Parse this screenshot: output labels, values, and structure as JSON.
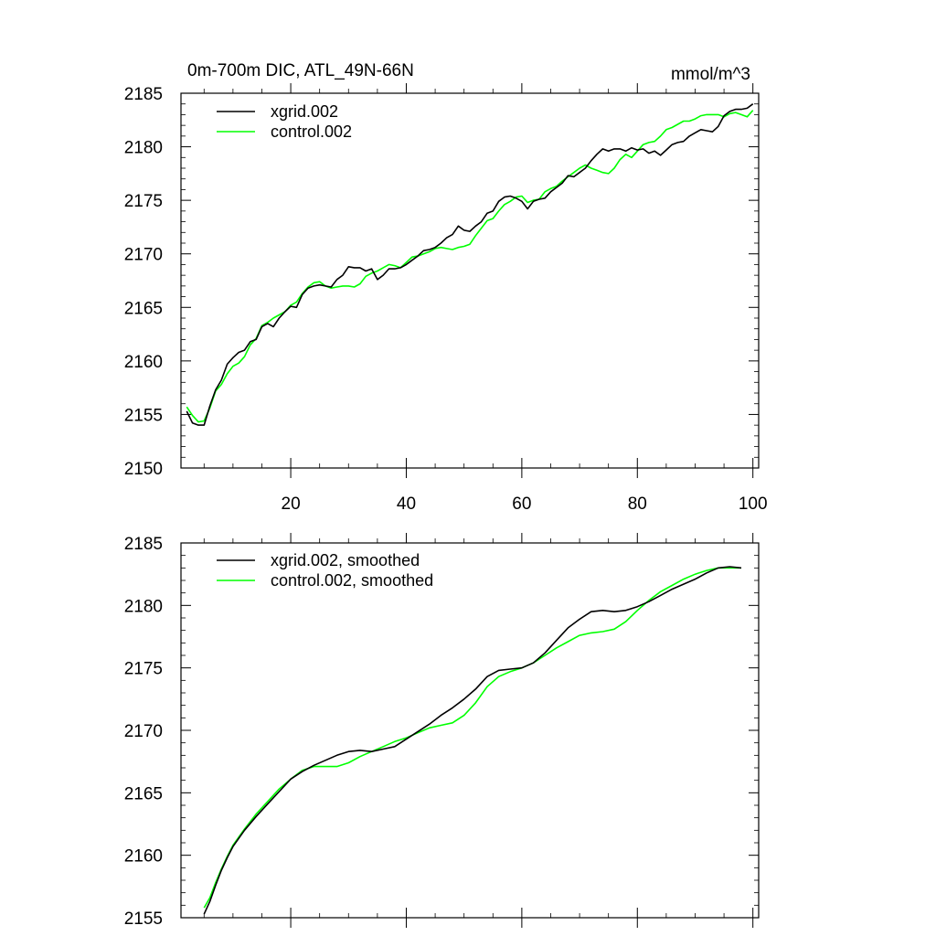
{
  "chart_data": [
    {
      "type": "line",
      "title": "0m-700m DIC, ATL_49N-66N",
      "units": "mmol/m^3",
      "xlim": [
        1,
        101
      ],
      "ylim": [
        2150,
        2185
      ],
      "xticks": [
        20,
        40,
        60,
        80,
        100
      ],
      "xtick_labels": [
        "20",
        "40",
        "60",
        "80",
        "100"
      ],
      "yticks": [
        2150,
        2155,
        2160,
        2165,
        2170,
        2175,
        2180,
        2185
      ],
      "ytick_labels": [
        "2150",
        "2155",
        "2160",
        "2165",
        "2170",
        "2175",
        "2180",
        "2185"
      ],
      "legend": "top-left",
      "series": [
        {
          "name": "xgrid.002",
          "color": "#000000",
          "x": [
            2,
            3,
            4,
            5,
            6,
            7,
            8,
            9,
            10,
            11,
            12,
            13,
            14,
            15,
            16,
            17,
            18,
            19,
            20,
            21,
            22,
            23,
            24,
            25,
            26,
            27,
            28,
            29,
            30,
            31,
            32,
            33,
            34,
            35,
            36,
            37,
            38,
            39,
            40,
            41,
            42,
            43,
            44,
            45,
            46,
            47,
            48,
            49,
            50,
            51,
            52,
            53,
            54,
            55,
            56,
            57,
            58,
            59,
            60,
            61,
            62,
            63,
            64,
            65,
            66,
            67,
            68,
            69,
            70,
            71,
            72,
            73,
            74,
            75,
            76,
            77,
            78,
            79,
            80,
            81,
            82,
            83,
            84,
            85,
            86,
            87,
            88,
            89,
            90,
            91,
            92,
            93,
            94,
            95,
            96,
            97,
            98,
            99,
            100
          ],
          "y": [
            2155.3,
            2154.2,
            2154.0,
            2154.0,
            2155.8,
            2157.3,
            2158.2,
            2159.7,
            2160.3,
            2160.8,
            2161.0,
            2161.8,
            2162.0,
            2163.2,
            2163.5,
            2163.2,
            2164.0,
            2164.6,
            2165.1,
            2165.0,
            2166.2,
            2166.8,
            2167.0,
            2167.1,
            2167.0,
            2166.9,
            2167.6,
            2168.0,
            2168.8,
            2168.7,
            2168.7,
            2168.4,
            2168.6,
            2167.6,
            2168.0,
            2168.6,
            2168.6,
            2168.7,
            2169.0,
            2169.4,
            2169.8,
            2170.3,
            2170.4,
            2170.6,
            2171.0,
            2171.5,
            2171.8,
            2172.6,
            2172.2,
            2172.1,
            2172.6,
            2173.0,
            2173.8,
            2174.0,
            2174.9,
            2175.3,
            2175.4,
            2175.2,
            2174.9,
            2174.2,
            2174.9,
            2175.1,
            2175.2,
            2175.8,
            2176.2,
            2176.6,
            2177.3,
            2177.2,
            2177.6,
            2178.0,
            2178.7,
            2179.3,
            2179.8,
            2179.6,
            2179.8,
            2179.8,
            2179.6,
            2179.9,
            2179.7,
            2179.8,
            2179.4,
            2179.6,
            2179.2,
            2179.7,
            2180.2,
            2180.4,
            2180.5,
            2181.0,
            2181.3,
            2181.6,
            2181.5,
            2181.4,
            2181.9,
            2182.9,
            2183.3,
            2183.5,
            2183.5,
            2183.6,
            2184.0
          ]
        },
        {
          "name": "control.002",
          "color": "#00ff00",
          "x": [
            2,
            3,
            4,
            5,
            6,
            7,
            8,
            9,
            10,
            11,
            12,
            13,
            14,
            15,
            16,
            17,
            18,
            19,
            20,
            21,
            22,
            23,
            24,
            25,
            26,
            27,
            28,
            29,
            30,
            31,
            32,
            33,
            34,
            35,
            36,
            37,
            38,
            39,
            40,
            41,
            42,
            43,
            44,
            45,
            46,
            47,
            48,
            49,
            50,
            51,
            52,
            53,
            54,
            55,
            56,
            57,
            58,
            59,
            60,
            61,
            62,
            63,
            64,
            65,
            66,
            67,
            68,
            69,
            70,
            71,
            72,
            73,
            74,
            75,
            76,
            77,
            78,
            79,
            80,
            81,
            82,
            83,
            84,
            85,
            86,
            87,
            88,
            89,
            90,
            91,
            92,
            93,
            94,
            95,
            96,
            97,
            98,
            99,
            100
          ],
          "y": [
            2155.7,
            2154.9,
            2154.3,
            2154.4,
            2155.6,
            2157.2,
            2157.8,
            2158.8,
            2159.5,
            2159.8,
            2160.4,
            2161.5,
            2162.1,
            2163.3,
            2163.6,
            2164.0,
            2164.3,
            2164.6,
            2165.2,
            2165.5,
            2166.3,
            2166.9,
            2167.3,
            2167.4,
            2167.0,
            2166.8,
            2166.9,
            2167.0,
            2167.0,
            2166.9,
            2167.2,
            2167.9,
            2168.2,
            2168.4,
            2168.7,
            2169.0,
            2168.9,
            2168.7,
            2169.2,
            2169.7,
            2169.8,
            2170.0,
            2170.2,
            2170.5,
            2170.6,
            2170.5,
            2170.4,
            2170.6,
            2170.7,
            2170.9,
            2171.7,
            2172.4,
            2173.1,
            2173.3,
            2174.0,
            2174.6,
            2174.9,
            2175.3,
            2175.4,
            2174.8,
            2175.0,
            2175.1,
            2175.8,
            2176.1,
            2176.3,
            2176.8,
            2177.2,
            2177.6,
            2178.0,
            2178.3,
            2178.0,
            2177.8,
            2177.6,
            2177.5,
            2178.0,
            2178.8,
            2179.3,
            2179.0,
            2179.6,
            2180.2,
            2180.4,
            2180.5,
            2181.0,
            2181.6,
            2181.8,
            2182.1,
            2182.4,
            2182.4,
            2182.6,
            2182.9,
            2183.0,
            2183.0,
            2183.0,
            2182.8,
            2183.1,
            2183.2,
            2183.0,
            2182.8,
            2183.4
          ]
        }
      ]
    },
    {
      "type": "line",
      "title": "",
      "xlim": [
        1,
        101
      ],
      "ylim": [
        2155,
        2185
      ],
      "xticks": [
        20,
        40,
        60,
        80,
        100
      ],
      "xtick_labels": [],
      "yticks": [
        2155,
        2160,
        2165,
        2170,
        2175,
        2180,
        2185
      ],
      "ytick_labels": [
        "2155",
        "2160",
        "2165",
        "2170",
        "2175",
        "2180",
        "2185"
      ],
      "legend": "top-left",
      "series": [
        {
          "name": "xgrid.002, smoothed",
          "color": "#000000",
          "x": [
            5,
            6,
            7,
            8,
            9,
            10,
            12,
            14,
            16,
            18,
            20,
            22,
            24,
            26,
            28,
            30,
            32,
            34,
            36,
            38,
            40,
            42,
            44,
            46,
            48,
            50,
            52,
            54,
            56,
            58,
            60,
            62,
            64,
            66,
            68,
            70,
            72,
            74,
            76,
            78,
            80,
            82,
            84,
            86,
            88,
            90,
            92,
            94,
            96,
            98
          ],
          "y": [
            2155.3,
            2156.3,
            2157.6,
            2158.8,
            2159.8,
            2160.7,
            2162.0,
            2163.1,
            2164.1,
            2165.1,
            2166.1,
            2166.7,
            2167.2,
            2167.6,
            2168.0,
            2168.3,
            2168.4,
            2168.3,
            2168.5,
            2168.7,
            2169.3,
            2169.9,
            2170.5,
            2171.2,
            2171.8,
            2172.5,
            2173.3,
            2174.3,
            2174.8,
            2174.9,
            2175.0,
            2175.4,
            2176.2,
            2177.2,
            2178.2,
            2178.9,
            2179.5,
            2179.6,
            2179.5,
            2179.6,
            2179.9,
            2180.3,
            2180.8,
            2181.3,
            2181.7,
            2182.1,
            2182.6,
            2183.0,
            2183.1,
            2183.0
          ]
        },
        {
          "name": "control.002, smoothed",
          "color": "#00ff00",
          "x": [
            5,
            6,
            7,
            8,
            9,
            10,
            12,
            14,
            16,
            18,
            20,
            22,
            24,
            26,
            28,
            30,
            32,
            34,
            36,
            38,
            40,
            42,
            44,
            46,
            48,
            50,
            52,
            54,
            56,
            58,
            60,
            62,
            64,
            66,
            68,
            70,
            72,
            74,
            76,
            78,
            80,
            82,
            84,
            86,
            88,
            90,
            92,
            94,
            96,
            98
          ],
          "y": [
            2155.8,
            2156.6,
            2157.8,
            2158.9,
            2159.9,
            2160.8,
            2162.1,
            2163.3,
            2164.3,
            2165.3,
            2166.1,
            2166.8,
            2167.1,
            2167.1,
            2167.1,
            2167.4,
            2167.9,
            2168.3,
            2168.7,
            2169.1,
            2169.4,
            2169.8,
            2170.2,
            2170.4,
            2170.6,
            2171.2,
            2172.2,
            2173.5,
            2174.3,
            2174.7,
            2175.0,
            2175.4,
            2176.0,
            2176.6,
            2177.1,
            2177.6,
            2177.8,
            2177.9,
            2178.1,
            2178.7,
            2179.6,
            2180.4,
            2181.1,
            2181.6,
            2182.1,
            2182.5,
            2182.8,
            2183.0,
            2183.0,
            2183.0
          ]
        }
      ]
    }
  ]
}
